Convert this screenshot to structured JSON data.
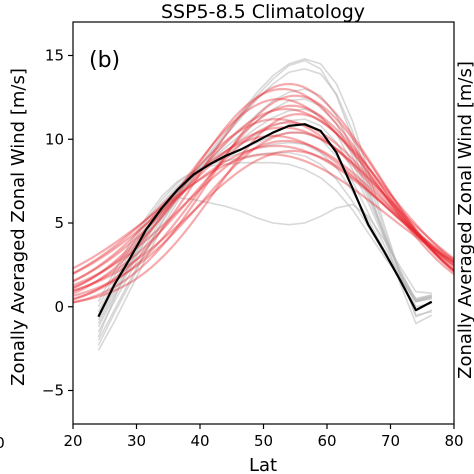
{
  "chart_data": {
    "type": "line",
    "title": "SSP5-8.5 Climatology",
    "panel_label": "(b)",
    "xlabel": "Lat",
    "ylabel": "Zonally Averaged Zonal Wind [m/s]",
    "right_ylabel_partial": "Zonally Averaged Zonal Wind [m/s]",
    "left_xtick_partial": "0",
    "xlim": [
      20,
      80
    ],
    "ylim": [
      -7,
      17
    ],
    "xticks": [
      20,
      30,
      40,
      50,
      60,
      70,
      80
    ],
    "yticks": [
      -5,
      0,
      5,
      10,
      15
    ],
    "grid": false,
    "colors": {
      "observed": "#000000",
      "model_fits": "#e8222a",
      "model_raw": "#b8b8b8"
    },
    "series": [
      {
        "name": "",
        "style": "black",
        "x": [
          24,
          26.5,
          29,
          31.5,
          34,
          36.5,
          39,
          41.5,
          44,
          46.5,
          49,
          51.5,
          54,
          56.5,
          59,
          61.5,
          64,
          66.5,
          69,
          71.5,
          74,
          76.5
        ],
        "y": [
          -0.6,
          1.3,
          2.9,
          4.6,
          5.9,
          7.0,
          7.9,
          8.5,
          9.0,
          9.4,
          9.9,
          10.4,
          10.8,
          10.9,
          10.5,
          9.2,
          7.1,
          4.9,
          3.3,
          1.6,
          -0.2,
          0.3
        ]
      }
    ],
    "ensemble_raw": {
      "style": "gray",
      "x": [
        24,
        26.5,
        29,
        31.5,
        34,
        36.5,
        39,
        41.5,
        44,
        46.5,
        49,
        51.5,
        54,
        56.5,
        59,
        61.5,
        64,
        66.5,
        69,
        71.5,
        74,
        76.5
      ],
      "members": [
        [
          -2.3,
          -0.4,
          1.4,
          3.3,
          5.0,
          6.5,
          7.9,
          9.2,
          10.4,
          11.6,
          12.8,
          13.8,
          14.5,
          14.8,
          14.5,
          13.3,
          11.1,
          8.1,
          4.9,
          2.0,
          -0.6,
          -0.2
        ],
        [
          -2.0,
          -0.2,
          1.6,
          3.4,
          5.1,
          6.6,
          7.9,
          9.1,
          10.2,
          11.3,
          12.4,
          13.3,
          14.0,
          14.2,
          13.9,
          12.7,
          10.5,
          7.6,
          4.6,
          1.9,
          -0.5,
          -0.3
        ],
        [
          -1.5,
          0.3,
          2.0,
          3.7,
          5.3,
          6.6,
          7.8,
          8.8,
          9.7,
          10.6,
          11.5,
          12.3,
          12.8,
          13.0,
          12.6,
          11.4,
          9.4,
          6.9,
          4.4,
          2.0,
          0.0,
          0.2
        ],
        [
          -1.2,
          0.6,
          2.3,
          4.0,
          5.5,
          6.8,
          7.8,
          8.7,
          9.5,
          10.3,
          11.1,
          11.8,
          12.3,
          12.4,
          12.0,
          10.9,
          9.0,
          6.7,
          4.3,
          2.1,
          0.3,
          0.5
        ],
        [
          -1.0,
          0.8,
          2.5,
          4.1,
          5.6,
          6.8,
          7.8,
          8.6,
          9.3,
          10.0,
          10.7,
          11.3,
          11.7,
          11.8,
          11.4,
          10.3,
          8.6,
          6.5,
          4.3,
          2.2,
          0.4,
          0.6
        ],
        [
          -0.8,
          1.0,
          2.7,
          4.3,
          5.7,
          6.9,
          7.8,
          8.5,
          9.1,
          9.7,
          10.3,
          10.8,
          11.1,
          11.2,
          10.8,
          9.8,
          8.2,
          6.2,
          4.1,
          2.1,
          0.4,
          0.7
        ],
        [
          -0.5,
          1.3,
          3.0,
          4.6,
          6.0,
          7.1,
          7.9,
          8.5,
          9.0,
          9.4,
          9.8,
          10.2,
          10.4,
          10.4,
          10.0,
          9.0,
          7.5,
          5.6,
          3.7,
          1.9,
          0.3,
          0.6
        ],
        [
          -0.3,
          1.5,
          3.2,
          4.8,
          6.2,
          7.2,
          8.0,
          8.5,
          8.9,
          9.2,
          9.5,
          9.7,
          9.8,
          9.7,
          9.2,
          8.3,
          6.9,
          5.2,
          3.4,
          1.8,
          0.3,
          0.5
        ],
        [
          0.0,
          1.8,
          3.5,
          5.1,
          6.4,
          7.4,
          8.1,
          8.5,
          8.7,
          8.9,
          9.1,
          9.2,
          9.2,
          9.0,
          8.5,
          7.6,
          6.3,
          4.8,
          3.2,
          1.7,
          0.4,
          0.6
        ],
        [
          0.3,
          2.1,
          3.8,
          5.3,
          6.6,
          7.5,
          8.1,
          8.4,
          8.5,
          8.6,
          8.6,
          8.6,
          8.5,
          8.2,
          7.7,
          6.9,
          5.8,
          4.4,
          3.0,
          1.7,
          0.5,
          0.7
        ],
        [
          -1.8,
          0.5,
          2.6,
          4.4,
          5.9,
          6.5,
          6.4,
          6.2,
          6.0,
          5.7,
          5.3,
          5.0,
          4.9,
          5.0,
          5.4,
          5.9,
          6.1,
          5.4,
          4.0,
          2.4,
          0.9,
          0.8
        ],
        [
          -2.6,
          -0.9,
          1.0,
          2.9,
          4.7,
          6.3,
          7.7,
          9.0,
          10.2,
          11.4,
          12.6,
          13.6,
          14.4,
          14.7,
          14.2,
          12.6,
          10.1,
          7.2,
          4.2,
          1.4,
          -1.0,
          -0.5
        ]
      ]
    },
    "ensemble_fits": {
      "style": "red",
      "x_range": [
        19,
        81
      ],
      "members": [
        {
          "amplitude": 13.6,
          "center": 54.0,
          "width": 14.0,
          "offset": -0.3
        },
        {
          "amplitude": 13.2,
          "center": 53.0,
          "width": 14.5,
          "offset": -0.2
        },
        {
          "amplitude": 12.8,
          "center": 55.0,
          "width": 13.5,
          "offset": -0.2
        },
        {
          "amplitude": 12.5,
          "center": 52.5,
          "width": 15.0,
          "offset": -0.1
        },
        {
          "amplitude": 12.1,
          "center": 54.5,
          "width": 14.0,
          "offset": -0.1
        },
        {
          "amplitude": 11.8,
          "center": 53.5,
          "width": 15.5,
          "offset": 0.0
        },
        {
          "amplitude": 11.5,
          "center": 55.5,
          "width": 13.0,
          "offset": 0.0
        },
        {
          "amplitude": 11.2,
          "center": 52.0,
          "width": 16.0,
          "offset": 0.0
        },
        {
          "amplitude": 10.9,
          "center": 54.0,
          "width": 15.0,
          "offset": 0.1
        },
        {
          "amplitude": 10.6,
          "center": 53.0,
          "width": 16.5,
          "offset": 0.1
        },
        {
          "amplitude": 10.3,
          "center": 55.0,
          "width": 14.5,
          "offset": 0.1
        },
        {
          "amplitude": 10.0,
          "center": 51.5,
          "width": 17.0,
          "offset": 0.2
        },
        {
          "amplitude": 9.7,
          "center": 53.5,
          "width": 16.0,
          "offset": 0.2
        },
        {
          "amplitude": 9.4,
          "center": 52.0,
          "width": 17.5,
          "offset": 0.2
        },
        {
          "amplitude": 9.1,
          "center": 54.5,
          "width": 15.5,
          "offset": 0.2
        },
        {
          "amplitude": 8.8,
          "center": 51.0,
          "width": 18.0,
          "offset": 0.3
        }
      ]
    }
  }
}
